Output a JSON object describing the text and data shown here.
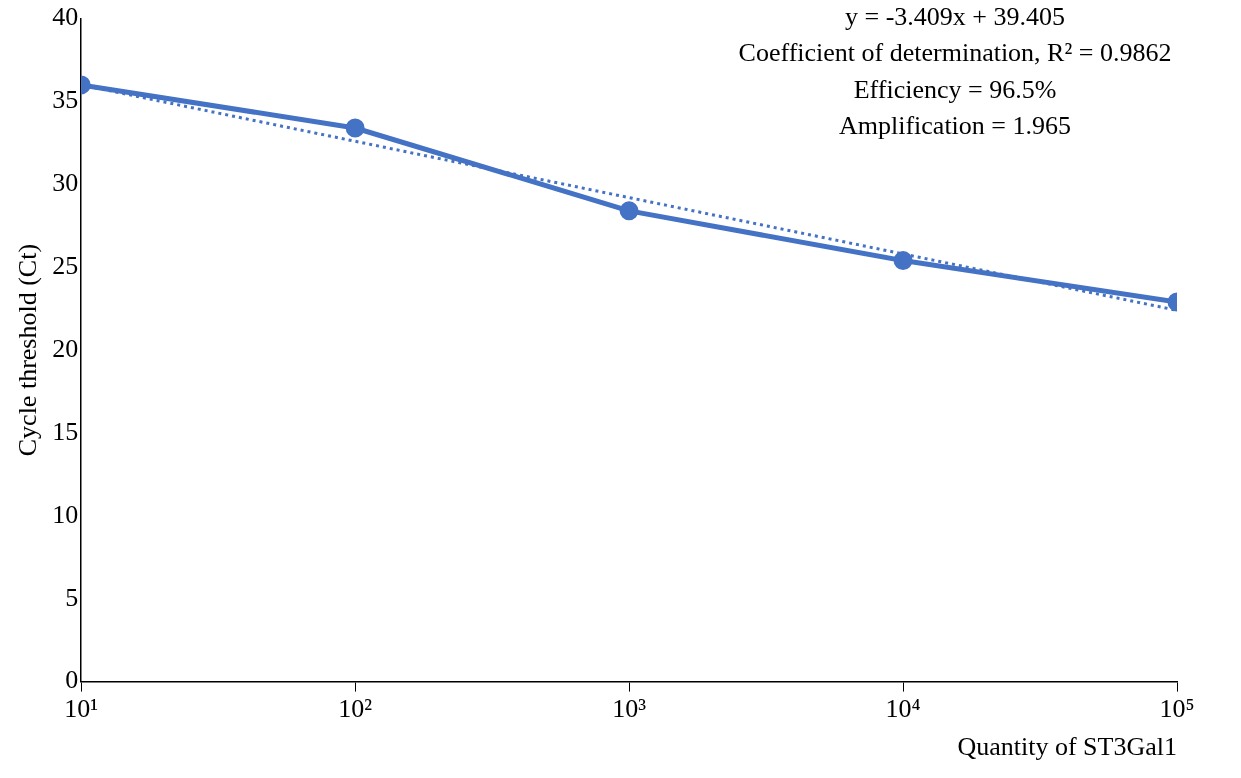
{
  "chart_data": {
    "type": "line",
    "xlabel": "Quantity of ST3Gal1",
    "ylabel": "Cycle threshold (Ct)",
    "x": [
      10,
      100,
      1000,
      10000,
      100000
    ],
    "log": "x",
    "series": [
      {
        "color": "#4472c4",
        "values": [
          36.0,
          33.4,
          28.4,
          25.4,
          22.9
        ],
        "marker": "circle",
        "line_style": "solid"
      },
      {
        "color": "#4472c4",
        "x": [
          10,
          100000
        ],
        "values": [
          36.0,
          22.4
        ],
        "marker": "none",
        "line_style": "dotted"
      }
    ],
    "xlim": [
      10,
      100000
    ],
    "xticks": [
      {
        "value": 10,
        "label": "10¹"
      },
      {
        "value": 100,
        "label": "10²"
      },
      {
        "value": 1000,
        "label": "10³"
      },
      {
        "value": 10000,
        "label": "10⁴"
      },
      {
        "value": 100000,
        "label": "10⁵"
      }
    ],
    "ylim": [
      0,
      40
    ],
    "yticks": [
      0,
      5,
      10,
      15,
      20,
      25,
      30,
      35,
      40
    ],
    "grid": false,
    "legend": false,
    "annotations": [
      "y = -3.409x + 39.405",
      "Coefficient of determination, R² = 0.9862",
      "Efficiency = 96.5%",
      "Amplification = 1.965"
    ]
  }
}
